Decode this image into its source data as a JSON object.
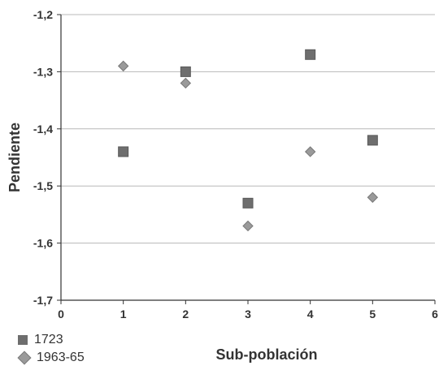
{
  "chart_data": {
    "type": "scatter",
    "xlabel": "Sub-población",
    "ylabel": "Pendiente",
    "xlim": [
      0,
      6
    ],
    "ylim": [
      -1.7,
      -1.2
    ],
    "x_ticks": [
      "0",
      "1",
      "2",
      "3",
      "4",
      "5",
      "6"
    ],
    "y_ticks": [
      "-1,2",
      "-1,3",
      "-1,4",
      "-1,5",
      "-1,6",
      "-1,7"
    ],
    "grid": "horizontal",
    "legend_position": "bottom-left",
    "series": [
      {
        "name": "1723",
        "marker": "square",
        "color": "#6e6e6e",
        "x": [
          1,
          2,
          3,
          4,
          5
        ],
        "y": [
          -1.44,
          -1.3,
          -1.53,
          -1.27,
          -1.42
        ]
      },
      {
        "name": "1963-65",
        "marker": "diamond",
        "color": "#9a9a9a",
        "x": [
          1,
          2,
          3,
          4,
          5
        ],
        "y": [
          -1.29,
          -1.32,
          -1.57,
          -1.44,
          -1.52
        ]
      }
    ]
  }
}
